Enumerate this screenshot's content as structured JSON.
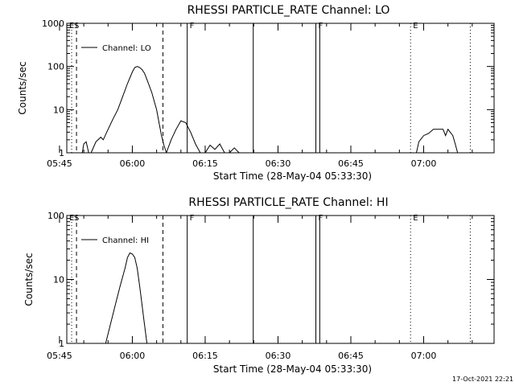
{
  "footer": {
    "timestamp": "17-Oct-2021 22:21"
  },
  "chart_data": [
    {
      "type": "line",
      "title": "RHESSI PARTICLE_RATE Channel: LO",
      "xlabel": "Start Time (28-May-04 05:33:30)",
      "ylabel": "Counts/sec",
      "yscale": "log",
      "ylim": [
        1,
        1000
      ],
      "yticks": [
        1,
        10,
        100,
        1000
      ],
      "ytick_labels": [
        "1",
        "10",
        "100",
        "1000"
      ],
      "xlim_minutes": [
        -13.5,
        74.5
      ],
      "xticks": [
        "05:45",
        "06:00",
        "06:15",
        "06:30",
        "06:45",
        "07:00"
      ],
      "legend": {
        "label": "Channel: LO",
        "placement": "top-left"
      },
      "markers": [
        {
          "label": "E",
          "t": -13.5,
          "style": "dotted"
        },
        {
          "label": "S",
          "t": -12.5,
          "style": "dotted"
        },
        {
          "label": "",
          "t": -11.5,
          "style": "dashed"
        },
        {
          "label": "",
          "t": 6.3,
          "style": "dashed"
        },
        {
          "label": "F",
          "t": 11.3,
          "style": "solid"
        },
        {
          "label": "",
          "t": 24.9,
          "style": "solid"
        },
        {
          "label": "F",
          "t": 37.8,
          "style": "solid"
        },
        {
          "label": "",
          "t": 38.6,
          "style": "solid"
        },
        {
          "label": "E",
          "t": 57.3,
          "style": "dotted"
        },
        {
          "label": "",
          "t": 69.6,
          "style": "dotted"
        }
      ],
      "series": [
        {
          "name": "Channel: LO",
          "segments": [
            [
              [
                -10.3,
                1
              ],
              [
                -10.0,
                1.6
              ],
              [
                -9.5,
                1.8
              ],
              [
                -9.0,
                1.0
              ]
            ],
            [
              [
                -8.5,
                1
              ],
              [
                -7.5,
                1.8
              ],
              [
                -6.5,
                2.3
              ],
              [
                -6.0,
                2.0
              ],
              [
                -5.0,
                3.5
              ],
              [
                -4.0,
                6
              ],
              [
                -3.0,
                10
              ],
              [
                -2.0,
                20
              ],
              [
                -1.0,
                40
              ],
              [
                0.0,
                75
              ],
              [
                0.5,
                95
              ],
              [
                1.0,
                100
              ],
              [
                1.5,
                95
              ],
              [
                2.0,
                85
              ],
              [
                2.5,
                70
              ],
              [
                3.0,
                50
              ],
              [
                4.0,
                25
              ],
              [
                5.0,
                10
              ],
              [
                5.5,
                5
              ],
              [
                6.0,
                2.5
              ],
              [
                6.5,
                1.5
              ],
              [
                7.0,
                1.0
              ]
            ],
            [
              [
                7.0,
                1
              ],
              [
                8.0,
                2
              ],
              [
                9.0,
                3.5
              ],
              [
                10.0,
                5.5
              ],
              [
                11.0,
                5
              ],
              [
                12.0,
                3
              ],
              [
                13.0,
                1.6
              ],
              [
                14.0,
                1.0
              ]
            ],
            [
              [
                15.0,
                1
              ],
              [
                16.0,
                1.5
              ],
              [
                17.0,
                1.2
              ],
              [
                18.0,
                1.6
              ],
              [
                19.0,
                1.0
              ]
            ],
            [
              [
                20.0,
                1
              ],
              [
                21.0,
                1.3
              ],
              [
                22.0,
                1.0
              ]
            ],
            [
              [
                58.5,
                1
              ],
              [
                59.0,
                1.8
              ],
              [
                60.0,
                2.5
              ],
              [
                61.0,
                2.8
              ],
              [
                62.0,
                3.5
              ],
              [
                63.0,
                3.5
              ],
              [
                64.0,
                3.5
              ],
              [
                64.5,
                2.5
              ],
              [
                65.0,
                3.5
              ],
              [
                66.0,
                2.5
              ],
              [
                66.5,
                1.6
              ],
              [
                67.0,
                1.0
              ]
            ]
          ]
        }
      ]
    },
    {
      "type": "line",
      "title": "RHESSI PARTICLE_RATE Channel: HI",
      "xlabel": "Start Time (28-May-04 05:33:30)",
      "ylabel": "Counts/sec",
      "yscale": "log",
      "ylim": [
        1,
        100
      ],
      "yticks": [
        1,
        10,
        100
      ],
      "ytick_labels": [
        "1",
        "10",
        "100"
      ],
      "xlim_minutes": [
        -13.5,
        74.5
      ],
      "xticks": [
        "05:45",
        "06:00",
        "06:15",
        "06:30",
        "06:45",
        "07:00"
      ],
      "legend": {
        "label": "Channel: HI",
        "placement": "top-left"
      },
      "markers": [
        {
          "label": "E",
          "t": -13.5,
          "style": "dotted"
        },
        {
          "label": "S",
          "t": -12.5,
          "style": "dotted"
        },
        {
          "label": "",
          "t": -11.5,
          "style": "dashed"
        },
        {
          "label": "",
          "t": 6.3,
          "style": "dashed"
        },
        {
          "label": "F",
          "t": 11.3,
          "style": "solid"
        },
        {
          "label": "",
          "t": 24.9,
          "style": "solid"
        },
        {
          "label": "F",
          "t": 37.8,
          "style": "solid"
        },
        {
          "label": "",
          "t": 38.6,
          "style": "solid"
        },
        {
          "label": "E",
          "t": 57.3,
          "style": "dotted"
        },
        {
          "label": "",
          "t": 69.6,
          "style": "dotted"
        }
      ],
      "series": [
        {
          "name": "Channel: HI",
          "segments": [
            [
              [
                -5.5,
                1
              ],
              [
                -4.5,
                2
              ],
              [
                -3.5,
                4
              ],
              [
                -2.5,
                8
              ],
              [
                -1.5,
                15
              ],
              [
                -1.0,
                22
              ],
              [
                -0.5,
                26
              ],
              [
                0.0,
                25
              ],
              [
                0.5,
                22
              ],
              [
                1.0,
                15
              ],
              [
                1.5,
                8
              ],
              [
                2.0,
                4
              ],
              [
                2.5,
                2
              ],
              [
                3.0,
                1
              ]
            ]
          ]
        }
      ]
    }
  ]
}
